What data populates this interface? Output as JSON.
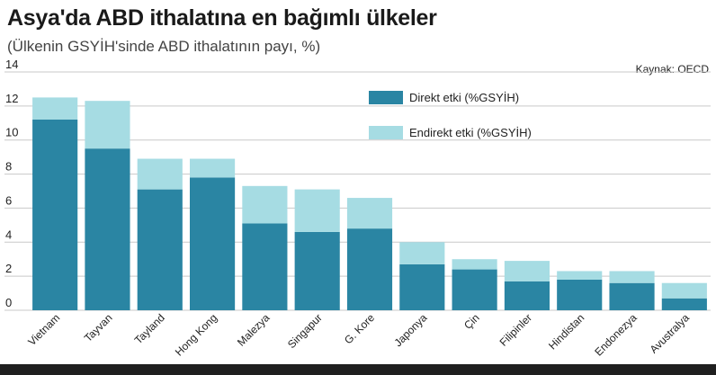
{
  "header": {
    "title": "Asya'da ABD ithalatına en bağımlı ülkeler",
    "subtitle": "(Ülkenin GSYİH'sinde ABD ithalatının payı, %)",
    "source": "Kaynak: OECD"
  },
  "colors": {
    "direct": "#2a85a3",
    "indirect": "#a6dce3",
    "grid": "#c9c9c9",
    "bar_bottom": "#1f1f1f"
  },
  "chart_data": {
    "type": "bar",
    "stacked": true,
    "categories": [
      "Vietnam",
      "Tayvan",
      "Tayland",
      "Hong Kong",
      "Malezya",
      "Singapur",
      "G. Kore",
      "Japonya",
      "Çin",
      "Filipinler",
      "Hindistan",
      "Endonezya",
      "Avustralya"
    ],
    "series": [
      {
        "name": "Direkt etki (%GSYİH)",
        "values": [
          11.2,
          9.5,
          7.1,
          7.8,
          5.1,
          4.6,
          4.8,
          2.7,
          2.4,
          1.7,
          1.8,
          1.6,
          0.7
        ]
      },
      {
        "name": "Endirekt etki (%GSYİH)",
        "values": [
          1.3,
          2.8,
          1.8,
          1.1,
          2.2,
          2.5,
          1.8,
          1.3,
          0.6,
          1.2,
          0.5,
          0.7,
          0.9
        ]
      }
    ],
    "ylim": [
      0,
      14
    ],
    "yticks": [
      0,
      2,
      4,
      6,
      8,
      10,
      12,
      14
    ],
    "grid": true,
    "legend_position": "top-center"
  }
}
